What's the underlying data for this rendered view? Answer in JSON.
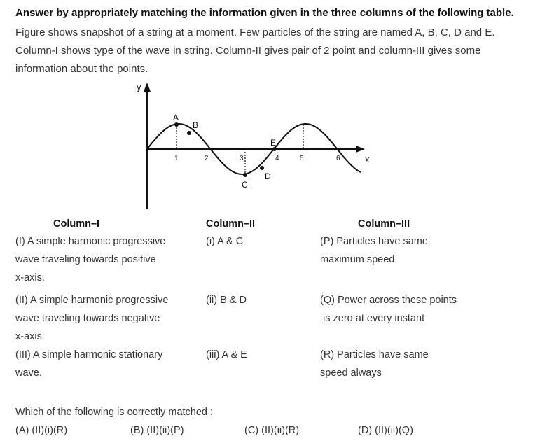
{
  "question": {
    "title": "Answer by appropriately matching the information given in the three columns of the following table.",
    "lines": [
      "Figure shows snapshot of a string at a moment. Few particles of the string are named A, B, C, D and E.",
      "Column-I shows type of the wave in string. Column-II gives pair of 2 point and column-III gives some",
      "information about the points."
    ]
  },
  "figure": {
    "y_label": "y",
    "x_label": "x",
    "ticks": [
      "1",
      "2",
      "3",
      "4",
      "5",
      "6"
    ],
    "points": [
      "A",
      "B",
      "C",
      "D",
      "E"
    ]
  },
  "table": {
    "headers": [
      "Column–I",
      "Column–II",
      "Column–III"
    ],
    "col1": [
      [
        "(I) A simple harmonic progressive",
        "wave traveling towards positive",
        "x-axis."
      ],
      [
        "(II) A simple harmonic progressive",
        "wave traveling towards negative",
        "x-axis"
      ],
      [
        "(III) A simple harmonic stationary",
        "wave."
      ]
    ],
    "col2": [
      "(i) A & C",
      "(ii) B & D",
      "(iii) A & E"
    ],
    "col3": [
      [
        "(P) Particles have same",
        "maximum speed"
      ],
      [
        "(Q) Power across these points",
        " is zero at every instant"
      ],
      [
        "(R) Particles have same",
        "speed always"
      ]
    ]
  },
  "prompt": "Which of the following is correctly matched :",
  "options": [
    {
      "label": "(A) (II)(i)(R)"
    },
    {
      "label": "(B) (II)(ii)(P)"
    },
    {
      "label": "(C) (II)(ii)(R)"
    },
    {
      "label": "(D) (II)(ii)(Q)"
    }
  ]
}
